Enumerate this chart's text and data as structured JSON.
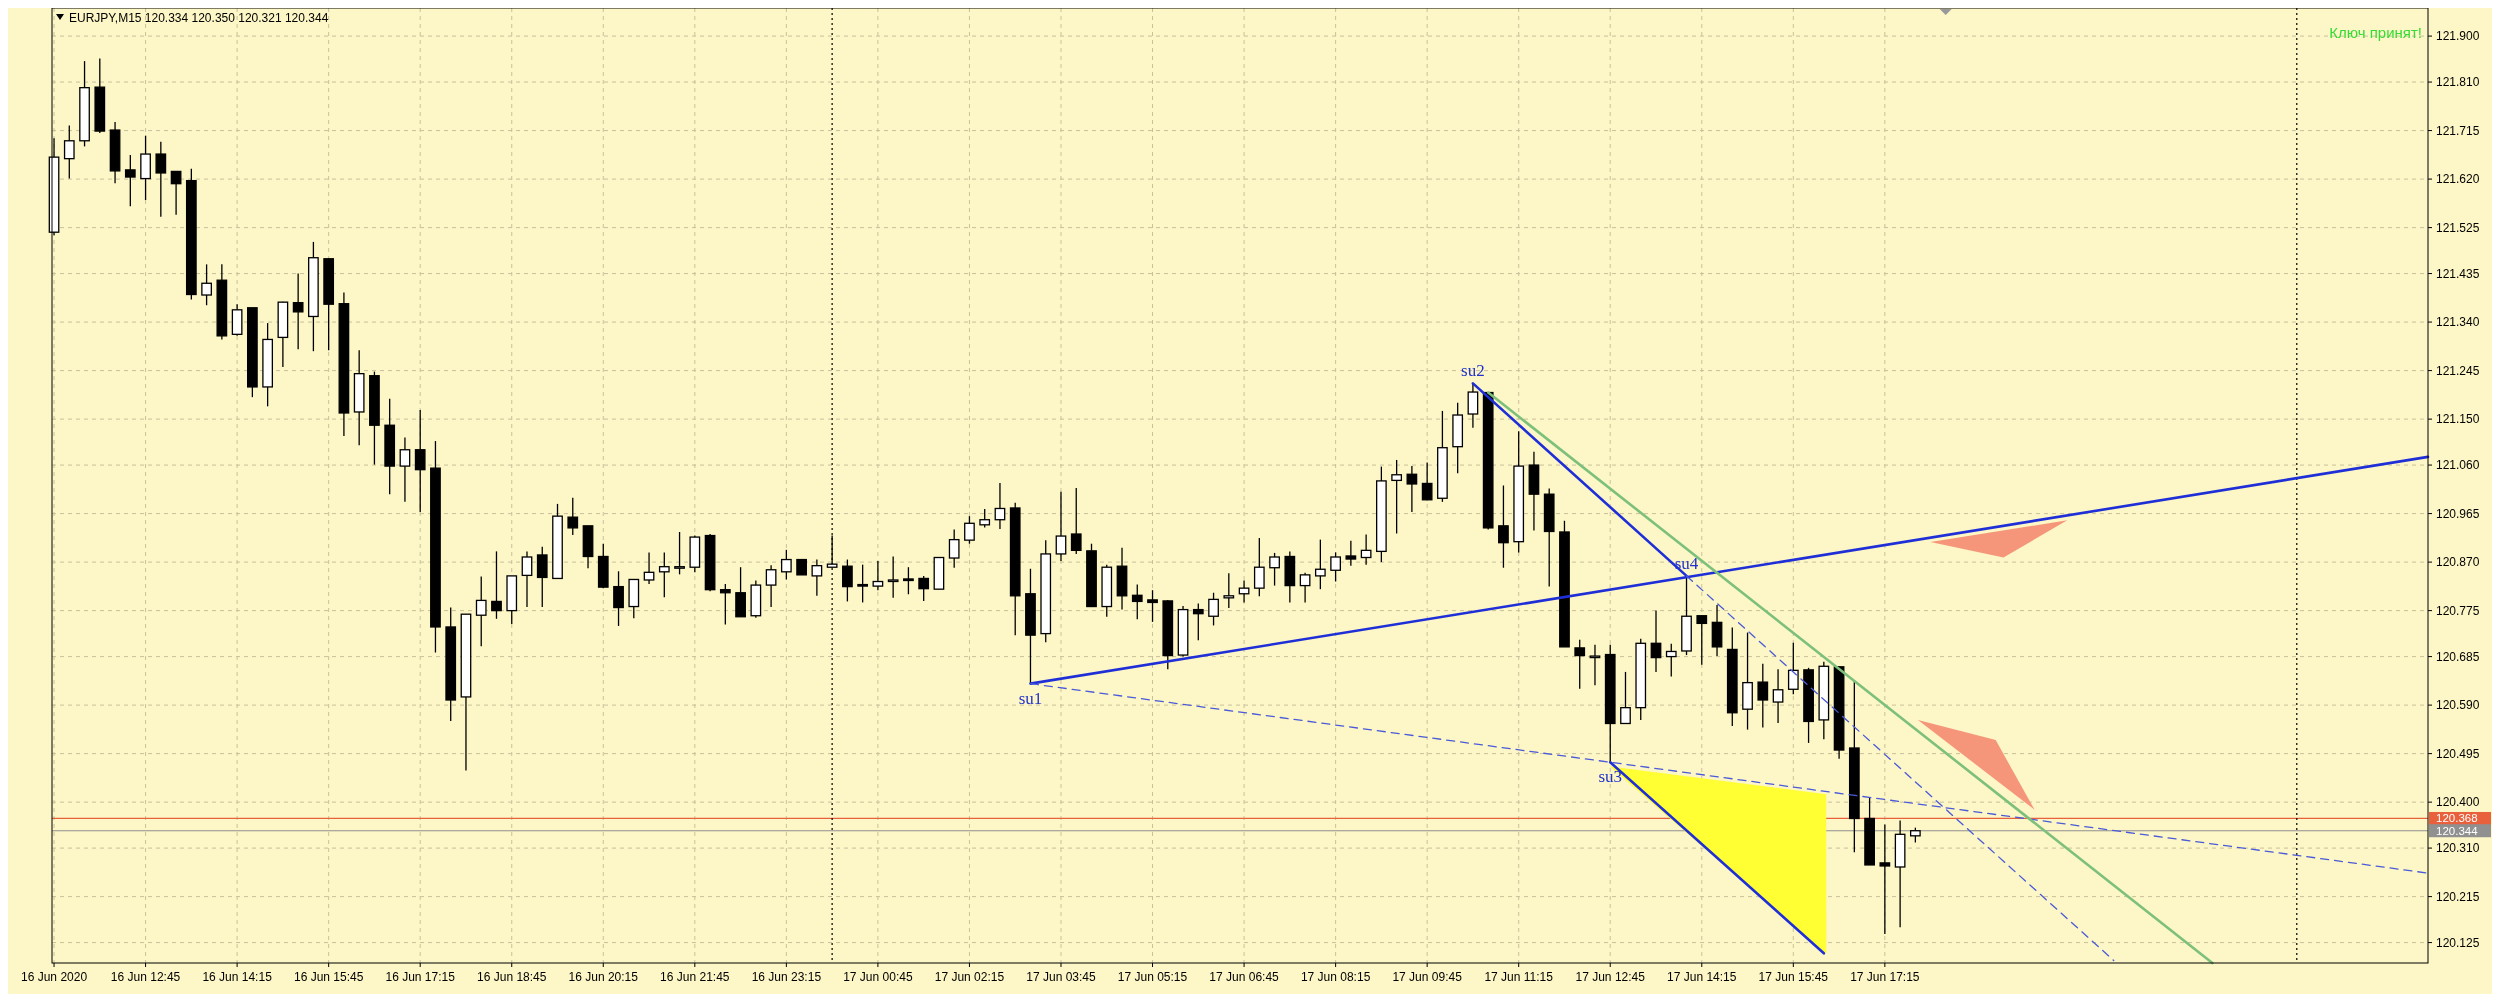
{
  "chart_data": {
    "type": "candlestick",
    "title": "EURJPY,M15  120.334 120.350 120.321 120.344",
    "color": "#000000",
    "x": [
      "2020-06-16T11:15",
      "2020-06-16T11:30",
      "2020-06-16T11:45",
      "2020-06-16T12:00",
      "2020-06-16T12:15",
      "2020-06-16T12:30",
      "2020-06-16T12:45",
      "2020-06-16T13:00",
      "2020-06-16T13:15",
      "2020-06-16T13:30",
      "2020-06-16T13:45",
      "2020-06-16T14:00",
      "2020-06-16T14:15",
      "2020-06-16T14:30",
      "2020-06-16T14:45",
      "2020-06-16T15:00",
      "2020-06-16T15:15",
      "2020-06-16T15:30",
      "2020-06-16T15:45",
      "2020-06-16T16:00",
      "2020-06-16T16:15",
      "2020-06-16T16:30",
      "2020-06-16T16:45",
      "2020-06-16T17:00",
      "2020-06-16T17:15",
      "2020-06-16T17:30",
      "2020-06-16T17:45",
      "2020-06-16T18:00",
      "2020-06-16T18:15",
      "2020-06-16T18:30",
      "2020-06-16T18:45",
      "2020-06-16T19:00",
      "2020-06-16T19:15",
      "2020-06-16T19:30",
      "2020-06-16T19:45",
      "2020-06-16T20:00",
      "2020-06-16T20:15",
      "2020-06-16T20:30",
      "2020-06-16T20:45",
      "2020-06-16T21:00",
      "2020-06-16T21:15",
      "2020-06-16T21:30",
      "2020-06-16T21:45",
      "2020-06-16T22:00",
      "2020-06-16T22:15",
      "2020-06-16T22:30",
      "2020-06-16T22:45",
      "2020-06-16T23:00",
      "2020-06-16T23:15",
      "2020-06-16T23:30",
      "2020-06-16T23:45",
      "2020-06-17T00:00",
      "2020-06-17T00:15",
      "2020-06-17T00:30",
      "2020-06-17T00:45",
      "2020-06-17T01:00",
      "2020-06-17T01:15",
      "2020-06-17T01:30",
      "2020-06-17T01:45",
      "2020-06-17T02:00",
      "2020-06-17T02:15",
      "2020-06-17T02:30",
      "2020-06-17T02:45",
      "2020-06-17T03:00",
      "2020-06-17T03:15",
      "2020-06-17T03:30",
      "2020-06-17T03:45",
      "2020-06-17T04:00",
      "2020-06-17T04:15",
      "2020-06-17T04:30",
      "2020-06-17T04:45",
      "2020-06-17T05:00",
      "2020-06-17T05:15",
      "2020-06-17T05:30",
      "2020-06-17T05:45",
      "2020-06-17T06:00",
      "2020-06-17T06:15",
      "2020-06-17T06:30",
      "2020-06-17T06:45",
      "2020-06-17T07:00",
      "2020-06-17T07:15",
      "2020-06-17T07:30",
      "2020-06-17T07:45",
      "2020-06-17T08:00",
      "2020-06-17T08:15",
      "2020-06-17T08:30",
      "2020-06-17T08:45",
      "2020-06-17T09:00",
      "2020-06-17T09:15",
      "2020-06-17T09:30",
      "2020-06-17T09:45",
      "2020-06-17T10:00",
      "2020-06-17T10:15",
      "2020-06-17T10:30",
      "2020-06-17T10:45",
      "2020-06-17T11:00",
      "2020-06-17T11:15",
      "2020-06-17T11:30",
      "2020-06-17T11:45",
      "2020-06-17T12:00",
      "2020-06-17T12:15",
      "2020-06-17T12:30",
      "2020-06-17T12:45",
      "2020-06-17T13:00",
      "2020-06-17T13:15",
      "2020-06-17T13:30",
      "2020-06-17T13:45",
      "2020-06-17T14:00",
      "2020-06-17T14:15",
      "2020-06-17T14:30",
      "2020-06-17T14:45",
      "2020-06-17T15:00",
      "2020-06-17T15:15",
      "2020-06-17T15:30",
      "2020-06-17T15:45",
      "2020-06-17T16:00",
      "2020-06-17T16:15",
      "2020-06-17T16:30",
      "2020-06-17T16:45",
      "2020-06-17T17:00",
      "2020-06-17T17:15",
      "2020-06-17T17:30",
      "2020-06-17T17:45"
    ],
    "ohlc": [
      [
        121.516,
        121.7,
        121.51,
        121.663
      ],
      [
        121.66,
        121.725,
        121.621,
        121.695
      ],
      [
        121.695,
        121.851,
        121.684,
        121.799
      ],
      [
        121.8,
        121.856,
        121.71,
        121.714
      ],
      [
        121.716,
        121.732,
        121.612,
        121.636
      ],
      [
        121.638,
        121.667,
        121.567,
        121.624
      ],
      [
        121.621,
        121.705,
        121.579,
        121.669
      ],
      [
        121.669,
        121.693,
        121.546,
        121.632
      ],
      [
        121.635,
        121.635,
        121.55,
        121.611
      ],
      [
        121.617,
        121.64,
        121.384,
        121.394
      ],
      [
        121.393,
        121.453,
        121.373,
        121.416
      ],
      [
        121.422,
        121.453,
        121.306,
        121.313
      ],
      [
        121.316,
        121.375,
        121.313,
        121.364
      ],
      [
        121.368,
        121.368,
        121.193,
        121.213
      ],
      [
        121.213,
        121.338,
        121.175,
        121.306
      ],
      [
        121.31,
        121.38,
        121.252,
        121.379
      ],
      [
        121.378,
        121.435,
        121.287,
        121.36
      ],
      [
        121.351,
        121.497,
        121.283,
        121.466
      ],
      [
        121.464,
        121.464,
        121.285,
        121.375
      ],
      [
        121.376,
        121.398,
        121.117,
        121.162
      ],
      [
        121.164,
        121.285,
        121.099,
        121.239
      ],
      [
        121.235,
        121.243,
        121.061,
        121.138
      ],
      [
        121.138,
        121.19,
        121.003,
        121.058
      ],
      [
        121.058,
        121.114,
        120.988,
        121.09
      ],
      [
        121.09,
        121.168,
        120.968,
        121.051
      ],
      [
        121.054,
        121.107,
        120.693,
        120.743
      ],
      [
        120.743,
        120.781,
        120.559,
        120.6
      ],
      [
        120.606,
        120.768,
        120.462,
        120.768
      ],
      [
        120.766,
        120.842,
        120.705,
        120.795
      ],
      [
        120.793,
        120.891,
        120.759,
        120.775
      ],
      [
        120.775,
        120.843,
        120.749,
        120.843
      ],
      [
        120.844,
        120.891,
        120.782,
        120.88
      ],
      [
        120.884,
        120.9,
        120.782,
        120.84
      ],
      [
        120.838,
        120.984,
        120.838,
        120.96
      ],
      [
        120.958,
        120.996,
        120.923,
        120.937
      ],
      [
        120.941,
        120.941,
        120.858,
        120.881
      ],
      [
        120.881,
        120.906,
        120.819,
        120.821
      ],
      [
        120.822,
        120.852,
        120.745,
        120.781
      ],
      [
        120.783,
        120.836,
        120.76,
        120.836
      ],
      [
        120.835,
        120.889,
        120.827,
        120.85
      ],
      [
        120.851,
        120.889,
        120.801,
        120.861
      ],
      [
        120.86,
        120.929,
        120.846,
        120.861
      ],
      [
        120.86,
        120.922,
        120.85,
        120.919
      ],
      [
        120.922,
        120.925,
        120.813,
        120.816
      ],
      [
        120.816,
        120.827,
        120.748,
        120.81
      ],
      [
        120.81,
        120.86,
        120.763,
        120.763
      ],
      [
        120.765,
        120.834,
        120.761,
        120.825
      ],
      [
        120.825,
        120.864,
        120.782,
        120.855
      ],
      [
        120.851,
        120.894,
        120.836,
        120.875
      ],
      [
        120.875,
        120.875,
        120.845,
        120.845
      ],
      [
        120.843,
        120.875,
        120.804,
        120.863
      ],
      [
        120.86,
        120.922,
        120.86,
        120.866
      ],
      [
        120.862,
        120.875,
        120.793,
        120.822
      ],
      [
        120.826,
        120.865,
        120.791,
        120.825
      ],
      [
        120.823,
        120.872,
        120.815,
        120.832
      ],
      [
        120.835,
        120.881,
        120.8,
        120.835
      ],
      [
        120.837,
        120.86,
        120.807,
        120.834
      ],
      [
        120.838,
        120.843,
        120.794,
        120.818
      ],
      [
        120.817,
        120.879,
        120.817,
        120.879
      ],
      [
        120.878,
        120.934,
        120.859,
        120.914
      ],
      [
        120.913,
        120.96,
        120.906,
        120.946
      ],
      [
        120.943,
        120.974,
        120.938,
        120.953
      ],
      [
        120.953,
        121.025,
        120.935,
        120.975
      ],
      [
        120.976,
        120.986,
        120.727,
        120.804
      ],
      [
        120.808,
        120.857,
        120.632,
        120.727
      ],
      [
        120.73,
        120.913,
        120.713,
        120.886
      ],
      [
        120.886,
        121.008,
        120.872,
        120.921
      ],
      [
        120.925,
        121.015,
        120.886,
        120.893
      ],
      [
        120.892,
        120.906,
        120.782,
        120.783
      ],
      [
        120.783,
        120.865,
        120.763,
        120.86
      ],
      [
        120.862,
        120.898,
        120.777,
        120.804
      ],
      [
        120.805,
        120.826,
        120.758,
        120.793
      ],
      [
        120.796,
        120.815,
        120.753,
        120.791
      ],
      [
        120.794,
        120.796,
        120.66,
        120.687
      ],
      [
        120.688,
        120.784,
        120.685,
        120.777
      ],
      [
        120.777,
        120.789,
        120.717,
        120.769
      ],
      [
        120.764,
        120.81,
        120.746,
        120.797
      ],
      [
        120.8,
        120.848,
        120.78,
        120.804
      ],
      [
        120.808,
        120.834,
        120.791,
        120.819
      ],
      [
        120.819,
        120.917,
        120.803,
        120.86
      ],
      [
        120.859,
        120.888,
        120.824,
        120.88
      ],
      [
        120.881,
        120.891,
        120.791,
        120.824
      ],
      [
        120.824,
        120.849,
        120.791,
        120.845
      ],
      [
        120.843,
        120.914,
        120.817,
        120.856
      ],
      [
        120.854,
        120.889,
        120.832,
        120.88
      ],
      [
        120.882,
        120.912,
        120.863,
        120.876
      ],
      [
        120.879,
        120.924,
        120.865,
        120.893
      ],
      [
        120.891,
        121.057,
        120.87,
        121.029
      ],
      [
        121.03,
        121.07,
        120.926,
        121.041
      ],
      [
        121.042,
        121.058,
        120.968,
        121.023
      ],
      [
        121.024,
        121.065,
        120.991,
        120.992
      ],
      [
        120.995,
        121.166,
        120.988,
        121.094
      ],
      [
        121.096,
        121.182,
        121.044,
        121.158
      ],
      [
        121.16,
        121.22,
        121.133,
        121.203
      ],
      [
        121.202,
        121.202,
        120.934,
        120.937
      ],
      [
        120.941,
        121.02,
        120.859,
        120.908
      ],
      [
        120.91,
        121.126,
        120.889,
        121.058
      ],
      [
        121.06,
        121.086,
        120.932,
        121.003
      ],
      [
        121.003,
        121.014,
        120.822,
        120.93
      ],
      [
        120.929,
        120.951,
        120.704,
        120.704
      ],
      [
        120.702,
        120.718,
        120.622,
        120.687
      ],
      [
        120.686,
        120.708,
        120.629,
        120.686
      ],
      [
        120.689,
        120.708,
        120.478,
        120.554
      ],
      [
        120.554,
        120.655,
        120.554,
        120.585
      ],
      [
        120.585,
        120.72,
        120.561,
        120.711
      ],
      [
        120.711,
        120.775,
        120.655,
        120.683
      ],
      [
        120.685,
        120.71,
        120.646,
        120.695
      ],
      [
        120.696,
        120.843,
        120.688,
        120.764
      ],
      [
        120.765,
        120.765,
        120.669,
        120.75
      ],
      [
        120.752,
        120.786,
        120.686,
        120.704
      ],
      [
        120.699,
        120.742,
        120.549,
        120.575
      ],
      [
        120.582,
        120.732,
        120.542,
        120.634
      ],
      [
        120.635,
        120.671,
        120.546,
        120.6
      ],
      [
        120.596,
        120.66,
        120.555,
        120.62
      ],
      [
        120.621,
        120.712,
        120.611,
        120.658
      ],
      [
        120.659,
        120.663,
        120.516,
        120.558
      ],
      [
        120.561,
        120.675,
        120.523,
        120.666
      ],
      [
        120.665,
        120.666,
        120.485,
        120.502
      ],
      [
        120.506,
        120.637,
        120.302,
        120.368
      ],
      [
        120.368,
        120.409,
        120.277,
        120.277
      ],
      [
        120.281,
        120.356,
        120.142,
        120.275
      ],
      [
        120.273,
        120.364,
        120.155,
        120.337
      ],
      [
        120.334,
        120.35,
        120.321,
        120.344
      ]
    ],
    "series": [
      {
        "type": "line",
        "x": [
          "2020-06-17T03:15",
          "2020-06-18T02:09"
        ],
        "values": [
          120.632,
          121.076
        ],
        "color": "#1f2fd8",
        "line_style": "solid"
      },
      {
        "type": "line",
        "x": [
          "2020-06-17T10:30",
          "2020-06-17T14:00"
        ],
        "values": [
          121.22,
          120.843
        ],
        "color": "#1f2fd8",
        "line_style": "solid"
      },
      {
        "type": "line",
        "x": [
          "2020-06-17T14:00",
          "2020-06-17T21:00"
        ],
        "values": [
          120.843,
          120.09
        ],
        "color": "#4a5ad8",
        "line_style": "dashed"
      },
      {
        "type": "line",
        "x": [
          "2020-06-17T03:15",
          "2020-06-18T02:09"
        ],
        "values": [
          120.632,
          120.261
        ],
        "color": "#4a5ad8",
        "line_style": "dashed"
      },
      {
        "type": "line",
        "x": [
          "2020-06-17T12:45",
          "2020-06-17T16:15"
        ],
        "values": [
          120.478,
          120.104
        ],
        "color": "#1f2fd8",
        "line_style": "solid"
      },
      {
        "type": "line",
        "x": [
          "2020-06-17T10:45",
          "2020-06-17T22:37"
        ],
        "values": [
          121.202,
          120.085
        ],
        "color": "#7cc07c",
        "line_style": "solid"
      }
    ],
    "xlim": [
      "2020-06-16T11:13",
      "2020-06-18T02:09"
    ],
    "xticks": [
      {
        "value": "2020-06-16T11:15",
        "label": "16 Jun 2020"
      },
      {
        "value": "2020-06-16T12:45",
        "label": "16 Jun 12:45"
      },
      {
        "value": "2020-06-16T14:15",
        "label": "16 Jun 14:15"
      },
      {
        "value": "2020-06-16T15:45",
        "label": "16 Jun 15:45"
      },
      {
        "value": "2020-06-16T17:15",
        "label": "16 Jun 17:15"
      },
      {
        "value": "2020-06-16T18:45",
        "label": "16 Jun 18:45"
      },
      {
        "value": "2020-06-16T20:15",
        "label": "16 Jun 20:15"
      },
      {
        "value": "2020-06-16T21:45",
        "label": "16 Jun 21:45"
      },
      {
        "value": "2020-06-16T23:15",
        "label": "16 Jun 23:15"
      },
      {
        "value": "2020-06-17T00:45",
        "label": "17 Jun 00:45"
      },
      {
        "value": "2020-06-17T02:15",
        "label": "17 Jun 02:15"
      },
      {
        "value": "2020-06-17T03:45",
        "label": "17 Jun 03:45"
      },
      {
        "value": "2020-06-17T05:15",
        "label": "17 Jun 05:15"
      },
      {
        "value": "2020-06-17T06:45",
        "label": "17 Jun 06:45"
      },
      {
        "value": "2020-06-17T08:15",
        "label": "17 Jun 08:15"
      },
      {
        "value": "2020-06-17T09:45",
        "label": "17 Jun 09:45"
      },
      {
        "value": "2020-06-17T11:15",
        "label": "17 Jun 11:15"
      },
      {
        "value": "2020-06-17T12:45",
        "label": "17 Jun 12:45"
      },
      {
        "value": "2020-06-17T14:15",
        "label": "17 Jun 14:15"
      },
      {
        "value": "2020-06-17T15:45",
        "label": "17 Jun 15:45"
      },
      {
        "value": "2020-06-17T17:15",
        "label": "17 Jun 17:15"
      }
    ],
    "ylim": [
      120.085,
      121.955
    ],
    "yticks": [
      {
        "value": 121.9,
        "label": "121.900"
      },
      {
        "value": 121.81,
        "label": "121.810"
      },
      {
        "value": 121.715,
        "label": "121.715"
      },
      {
        "value": 121.62,
        "label": "121.620"
      },
      {
        "value": 121.525,
        "label": "121.525"
      },
      {
        "value": 121.435,
        "label": "121.435"
      },
      {
        "value": 121.34,
        "label": "121.340"
      },
      {
        "value": 121.245,
        "label": "121.245"
      },
      {
        "value": 121.15,
        "label": "121.150"
      },
      {
        "value": 121.06,
        "label": "121.060"
      },
      {
        "value": 120.965,
        "label": "120.965"
      },
      {
        "value": 120.87,
        "label": "120.870"
      },
      {
        "value": 120.775,
        "label": "120.775"
      },
      {
        "value": 120.685,
        "label": "120.685"
      },
      {
        "value": 120.59,
        "label": "120.590"
      },
      {
        "value": 120.495,
        "label": "120.495"
      },
      {
        "value": 120.4,
        "label": "120.400"
      },
      {
        "value": 120.31,
        "label": "120.310"
      },
      {
        "value": 120.215,
        "label": "120.215"
      },
      {
        "value": 120.125,
        "label": "120.125"
      }
    ],
    "grid": true,
    "ref_lines": [
      {
        "axis": "y",
        "value": 120.368,
        "label": "120.368",
        "color": "#e8603c",
        "line_style": "solid"
      },
      {
        "axis": "y",
        "value": 120.344,
        "label": "120.344",
        "color": "#909090",
        "line_style": "solid"
      },
      {
        "axis": "x",
        "value": "2020-06-17T00:00",
        "color": "#000000",
        "line_style": "dotted"
      },
      {
        "axis": "x",
        "value": "2020-06-18T00:00",
        "color": "#000000",
        "line_style": "dotted"
      }
    ],
    "annotations": [
      {
        "text": "su1",
        "x": "2020-06-17T03:15",
        "y": 120.632
      },
      {
        "text": "su2",
        "x": "2020-06-17T10:30",
        "y": 121.22
      },
      {
        "text": "su3",
        "x": "2020-06-17T12:45",
        "y": 120.478
      },
      {
        "text": "su4",
        "x": "2020-06-17T14:00",
        "y": 120.843
      },
      "Ключ принят!"
    ]
  }
}
